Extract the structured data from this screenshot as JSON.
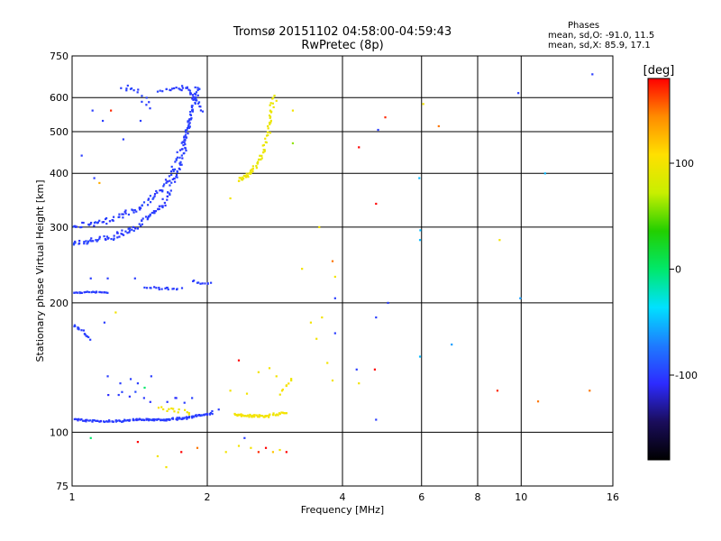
{
  "header": {
    "title_line1": "Tromsø 20151102 04:58:00-04:59:43",
    "title_line2": "RwPretec (8p)"
  },
  "phase_info": {
    "title": "Phases",
    "line1": "mean, sd,O: -91.0, 11.5",
    "line2": "mean, sd,X:  85.9, 17.1"
  },
  "chart_data": {
    "type": "scatter",
    "xlabel": "Frequency [MHz]",
    "ylabel": "Stationary phase Virtual Height [km]",
    "x_scale": "log",
    "y_scale": "log",
    "xlim": [
      1,
      16
    ],
    "ylim": [
      75,
      750
    ],
    "x_ticks": [
      1,
      2,
      4,
      6,
      8,
      10,
      16
    ],
    "y_ticks": [
      75,
      100,
      200,
      300,
      400,
      500,
      600,
      750
    ],
    "grid": true,
    "colorbar": {
      "label": "[deg]",
      "range": [
        -180,
        180
      ],
      "ticks": [
        100,
        0,
        -100
      ],
      "stops": [
        "#000000",
        "#1a0d5c",
        "#2d2bff",
        "#1e7bff",
        "#00e1ff",
        "#00e86a",
        "#22cf00",
        "#c8ef00",
        "#ffe000",
        "#ff8c00",
        "#ff0000"
      ]
    },
    "series": [
      {
        "clusters": [
          {
            "kind": "trace",
            "f": [
              1.0,
              1.2,
              1.4,
              1.6,
              1.75,
              1.85
            ],
            "h": [
              275,
              282,
              300,
              340,
              420,
              560
            ],
            "n": 130,
            "jf": 0.02,
            "jh": 0.025,
            "phase": -100
          },
          {
            "kind": "trace",
            "f": [
              1.0,
              1.2,
              1.4,
              1.6,
              1.75,
              1.85,
              1.9
            ],
            "h": [
              300,
              310,
              330,
              370,
              450,
              560,
              640
            ],
            "n": 130,
            "jf": 0.02,
            "jh": 0.025,
            "phase": -100
          },
          {
            "kind": "trace",
            "f": [
              1.55,
              1.7,
              1.8,
              1.88,
              1.95
            ],
            "h": [
              620,
              630,
              630,
              600,
              560
            ],
            "n": 35,
            "jf": 0.015,
            "jh": 0.02,
            "phase": -100
          },
          {
            "kind": "trace",
            "f": [
              1.0,
              1.2,
              1.4,
              1.6,
              1.8,
              2.05
            ],
            "h": [
              107,
              106,
              107,
              107,
              108,
              111
            ],
            "n": 140,
            "jf": 0.01,
            "jh": 0.008,
            "phase": -100
          },
          {
            "kind": "trace",
            "f": [
              2.3,
              2.5,
              2.7,
              3.0
            ],
            "h": [
              110,
              109,
              109,
              111
            ],
            "n": 55,
            "jf": 0.01,
            "jh": 0.01,
            "phase": 100
          },
          {
            "kind": "trace",
            "f": [
              2.35,
              2.5,
              2.65,
              2.75,
              2.8
            ],
            "h": [
              385,
              400,
              440,
              520,
              610
            ],
            "n": 70,
            "jf": 0.015,
            "jh": 0.02,
            "phase": 95
          },
          {
            "kind": "trace",
            "f": [
              1.0,
              1.1,
              1.2
            ],
            "h": [
              211,
              212,
              211
            ],
            "n": 25,
            "jf": 0.01,
            "jh": 0.005,
            "phase": -100
          },
          {
            "kind": "trace",
            "f": [
              1.45,
              1.6,
              1.75
            ],
            "h": [
              217,
              216,
              216
            ],
            "n": 18,
            "jf": 0.01,
            "jh": 0.008,
            "phase": -100
          },
          {
            "kind": "trace",
            "f": [
              1.85,
              1.95,
              2.05
            ],
            "h": [
              225,
              222,
              222
            ],
            "n": 10,
            "jf": 0.01,
            "jh": 0.01,
            "phase": -100
          },
          {
            "kind": "trace",
            "f": [
              1.0,
              1.05,
              1.1
            ],
            "h": [
              178,
              172,
              165
            ],
            "n": 15,
            "jf": 0.01,
            "jh": 0.015,
            "phase": -100
          },
          {
            "kind": "trace",
            "f": [
              1.3,
              1.4,
              1.5
            ],
            "h": [
              640,
              620,
              560
            ],
            "n": 14,
            "jf": 0.02,
            "jh": 0.03,
            "phase": -100
          },
          {
            "kind": "trace",
            "f": [
              1.55,
              1.7,
              1.85
            ],
            "h": [
              114,
              112,
              112
            ],
            "n": 14,
            "jf": 0.02,
            "jh": 0.02,
            "phase": 100
          },
          {
            "kind": "trace",
            "f": [
              1.2,
              1.5,
              1.9
            ],
            "h": [
              125,
              120,
              118
            ],
            "n": 12,
            "jf": 0.04,
            "jh": 0.04,
            "phase": -100
          },
          {
            "kind": "trace",
            "f": [
              2.9,
              3.0,
              3.1
            ],
            "h": [
              122,
              128,
              135
            ],
            "n": 8,
            "jf": 0.01,
            "jh": 0.02,
            "phase": 100
          }
        ],
        "points": [
          {
            "f": 1.11,
            "h": 560,
            "phase": -100
          },
          {
            "f": 1.17,
            "h": 530,
            "phase": -100
          },
          {
            "f": 1.22,
            "h": 560,
            "phase": 170
          },
          {
            "f": 1.3,
            "h": 480,
            "phase": -100
          },
          {
            "f": 1.42,
            "h": 530,
            "phase": -100
          },
          {
            "f": 1.33,
            "h": 640,
            "phase": -100
          },
          {
            "f": 1.05,
            "h": 440,
            "phase": -100
          },
          {
            "f": 1.12,
            "h": 390,
            "phase": -100
          },
          {
            "f": 1.15,
            "h": 380,
            "phase": 130
          },
          {
            "f": 1.1,
            "h": 228,
            "phase": -100
          },
          {
            "f": 1.2,
            "h": 228,
            "phase": -100
          },
          {
            "f": 1.38,
            "h": 228,
            "phase": -100
          },
          {
            "f": 1.25,
            "h": 190,
            "phase": 100
          },
          {
            "f": 1.18,
            "h": 180,
            "phase": -100
          },
          {
            "f": 1.2,
            "h": 135,
            "phase": -100
          },
          {
            "f": 1.28,
            "h": 130,
            "phase": -100
          },
          {
            "f": 1.35,
            "h": 133,
            "phase": -100
          },
          {
            "f": 1.4,
            "h": 130,
            "phase": -100
          },
          {
            "f": 1.5,
            "h": 135,
            "phase": -100
          },
          {
            "f": 1.45,
            "h": 127,
            "phase": 0
          },
          {
            "f": 1.1,
            "h": 97,
            "phase": 0
          },
          {
            "f": 1.4,
            "h": 95,
            "phase": 180
          },
          {
            "f": 1.55,
            "h": 88,
            "phase": 100
          },
          {
            "f": 1.62,
            "h": 83,
            "phase": 100
          },
          {
            "f": 1.75,
            "h": 90,
            "phase": 180
          },
          {
            "f": 1.9,
            "h": 92,
            "phase": 150
          },
          {
            "f": 2.05,
            "h": 112,
            "phase": -100
          },
          {
            "f": 2.12,
            "h": 113,
            "phase": -100
          },
          {
            "f": 2.2,
            "h": 90,
            "phase": 100
          },
          {
            "f": 2.35,
            "h": 93,
            "phase": 100
          },
          {
            "f": 2.5,
            "h": 92,
            "phase": 100
          },
          {
            "f": 2.6,
            "h": 90,
            "phase": 170
          },
          {
            "f": 2.7,
            "h": 92,
            "phase": 180
          },
          {
            "f": 2.8,
            "h": 90,
            "phase": 120
          },
          {
            "f": 2.9,
            "h": 91,
            "phase": 100
          },
          {
            "f": 3.0,
            "h": 90,
            "phase": 180
          },
          {
            "f": 2.42,
            "h": 97,
            "phase": -100
          },
          {
            "f": 2.25,
            "h": 125,
            "phase": 100
          },
          {
            "f": 2.45,
            "h": 123,
            "phase": 100
          },
          {
            "f": 2.6,
            "h": 138,
            "phase": 100
          },
          {
            "f": 2.75,
            "h": 141,
            "phase": 100
          },
          {
            "f": 2.85,
            "h": 135,
            "phase": 100
          },
          {
            "f": 2.35,
            "h": 147,
            "phase": 180
          },
          {
            "f": 2.25,
            "h": 350,
            "phase": 100
          },
          {
            "f": 3.1,
            "h": 560,
            "phase": 100
          },
          {
            "f": 3.1,
            "h": 470,
            "phase": 60
          },
          {
            "f": 2.85,
            "h": 590,
            "phase": 100
          },
          {
            "f": 3.25,
            "h": 240,
            "phase": 100
          },
          {
            "f": 3.4,
            "h": 180,
            "phase": 100
          },
          {
            "f": 3.5,
            "h": 165,
            "phase": 100
          },
          {
            "f": 3.6,
            "h": 185,
            "phase": 100
          },
          {
            "f": 3.7,
            "h": 145,
            "phase": 100
          },
          {
            "f": 3.8,
            "h": 132,
            "phase": 100
          },
          {
            "f": 3.85,
            "h": 205,
            "phase": -100
          },
          {
            "f": 3.85,
            "h": 170,
            "phase": -100
          },
          {
            "f": 3.8,
            "h": 250,
            "phase": 150
          },
          {
            "f": 3.55,
            "h": 300,
            "phase": 100
          },
          {
            "f": 3.85,
            "h": 230,
            "phase": 100
          },
          {
            "f": 4.35,
            "h": 460,
            "phase": 180
          },
          {
            "f": 4.75,
            "h": 340,
            "phase": 180
          },
          {
            "f": 4.98,
            "h": 540,
            "phase": 170
          },
          {
            "f": 4.8,
            "h": 505,
            "phase": -100
          },
          {
            "f": 5.05,
            "h": 200,
            "phase": -100
          },
          {
            "f": 4.75,
            "h": 185,
            "phase": -100
          },
          {
            "f": 4.3,
            "h": 140,
            "phase": -100
          },
          {
            "f": 4.72,
            "h": 140,
            "phase": 180
          },
          {
            "f": 4.35,
            "h": 130,
            "phase": 100
          },
          {
            "f": 4.75,
            "h": 107,
            "phase": -100
          },
          {
            "f": 5.93,
            "h": 390,
            "phase": -50
          },
          {
            "f": 5.96,
            "h": 295,
            "phase": -50
          },
          {
            "f": 5.95,
            "h": 280,
            "phase": -50
          },
          {
            "f": 5.95,
            "h": 150,
            "phase": -50
          },
          {
            "f": 6.05,
            "h": 580,
            "phase": 100
          },
          {
            "f": 6.55,
            "h": 515,
            "phase": 150
          },
          {
            "f": 7.0,
            "h": 160,
            "phase": -60
          },
          {
            "f": 8.85,
            "h": 125,
            "phase": 170
          },
          {
            "f": 8.95,
            "h": 280,
            "phase": 100
          },
          {
            "f": 9.85,
            "h": 615,
            "phase": -100
          },
          {
            "f": 9.95,
            "h": 205,
            "phase": -60
          },
          {
            "f": 10.9,
            "h": 118,
            "phase": 150
          },
          {
            "f": 11.3,
            "h": 400,
            "phase": -50
          },
          {
            "f": 14.2,
            "h": 125,
            "phase": 150
          },
          {
            "f": 14.4,
            "h": 680,
            "phase": -100
          }
        ]
      }
    ]
  }
}
